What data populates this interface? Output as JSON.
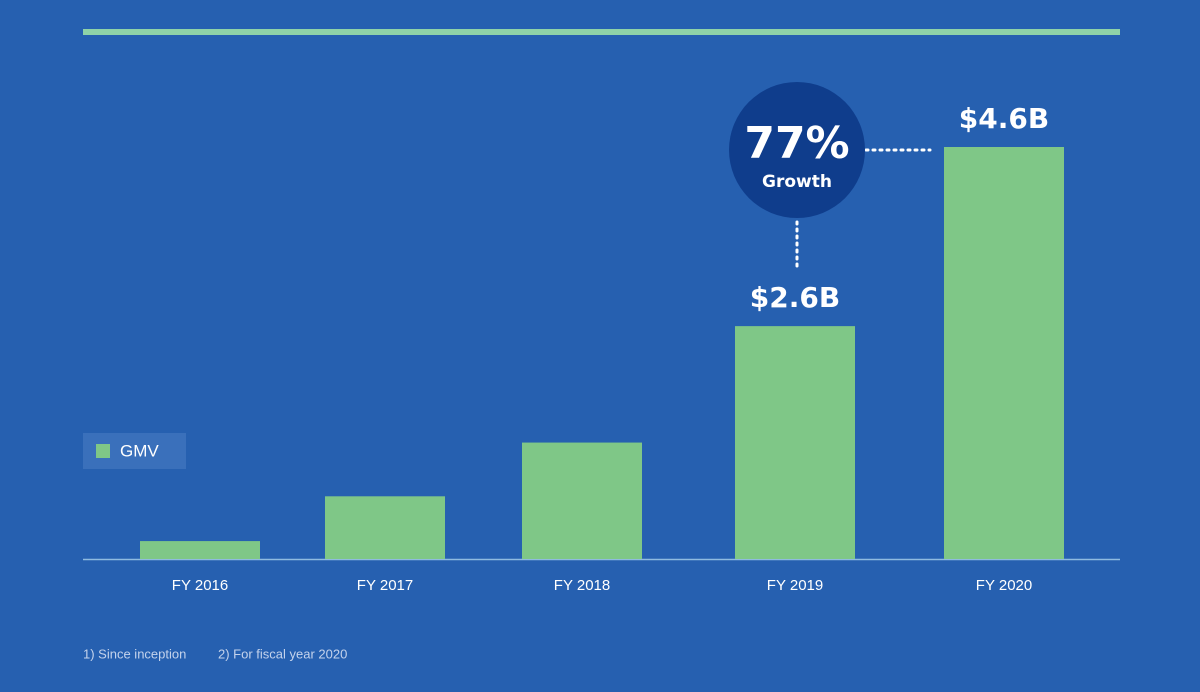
{
  "chart_data": {
    "type": "bar",
    "categories": [
      "FY 2016",
      "FY 2017",
      "FY 2018",
      "FY 2019",
      "FY 2020"
    ],
    "series": [
      {
        "name": "GMV",
        "color": "#7fc787",
        "values": [
          0.2,
          0.7,
          1.3,
          2.6,
          4.6
        ],
        "value_labels": [
          null,
          null,
          null,
          "$2.6B",
          "$4.6B"
        ]
      }
    ],
    "annotation": {
      "value": "77%",
      "label": "Growth"
    },
    "footnotes": [
      "1) Since inception",
      "2) For fiscal year 2020"
    ]
  }
}
